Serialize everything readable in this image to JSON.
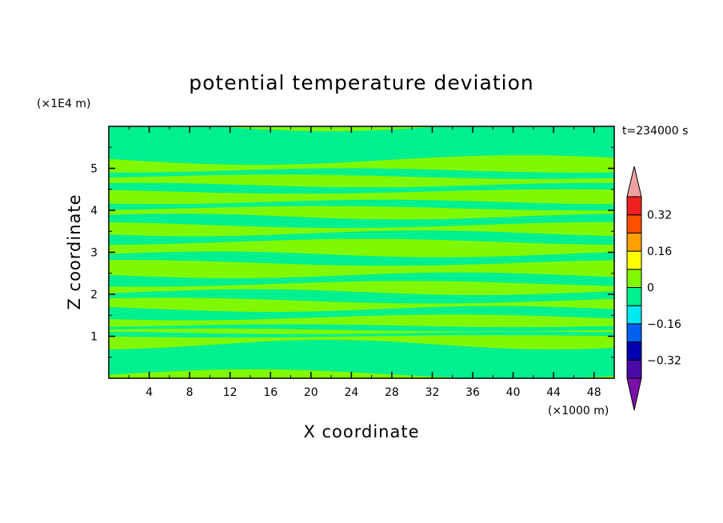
{
  "chart_data": {
    "type": "heatmap",
    "title": "potential temperature deviation",
    "xlabel": "X coordinate",
    "ylabel": "Z coordinate",
    "x_unit": "(×1000 m)",
    "y_unit": "(×1E4 m)",
    "time_label": "t=234000 s",
    "xlim": [
      0,
      50
    ],
    "ylim": [
      0,
      6
    ],
    "x_ticks": [
      4,
      8,
      12,
      16,
      20,
      24,
      28,
      32,
      36,
      40,
      44,
      48
    ],
    "y_ticks": [
      1,
      2,
      3,
      4,
      5
    ],
    "field_levels": {
      "description_values": [
        -0.08,
        0.04
      ],
      "colors": [
        "#00f090",
        "#80f800"
      ]
    },
    "bands_y": [
      {
        "y0": 0.0,
        "y1": 0.1,
        "value": 0.04
      },
      {
        "y0": 0.1,
        "y1": 0.8,
        "value": -0.08
      },
      {
        "y0": 0.8,
        "y1": 1.0,
        "value": 0.04
      },
      {
        "y0": 1.0,
        "y1": 1.08,
        "value": -0.08
      },
      {
        "y0": 1.08,
        "y1": 1.15,
        "value": 0.04
      },
      {
        "y0": 1.15,
        "y1": 1.25,
        "value": -0.08
      },
      {
        "y0": 1.25,
        "y1": 1.45,
        "value": 0.04
      },
      {
        "y0": 1.45,
        "y1": 1.65,
        "value": -0.08
      },
      {
        "y0": 1.65,
        "y1": 1.85,
        "value": 0.04
      },
      {
        "y0": 1.85,
        "y1": 2.05,
        "value": -0.08
      },
      {
        "y0": 2.05,
        "y1": 2.25,
        "value": 0.04
      },
      {
        "y0": 2.25,
        "y1": 2.45,
        "value": -0.08
      },
      {
        "y0": 2.45,
        "y1": 2.75,
        "value": 0.04
      },
      {
        "y0": 2.75,
        "y1": 2.95,
        "value": -0.08
      },
      {
        "y0": 2.95,
        "y1": 3.25,
        "value": 0.04
      },
      {
        "y0": 3.25,
        "y1": 3.45,
        "value": -0.08
      },
      {
        "y0": 3.45,
        "y1": 3.65,
        "value": 0.04
      },
      {
        "y0": 3.65,
        "y1": 3.85,
        "value": -0.08
      },
      {
        "y0": 3.85,
        "y1": 4.05,
        "value": 0.04
      },
      {
        "y0": 4.05,
        "y1": 4.2,
        "value": -0.08
      },
      {
        "y0": 4.2,
        "y1": 4.45,
        "value": 0.04
      },
      {
        "y0": 4.45,
        "y1": 4.6,
        "value": -0.08
      },
      {
        "y0": 4.6,
        "y1": 4.8,
        "value": 0.04
      },
      {
        "y0": 4.8,
        "y1": 4.95,
        "value": -0.08
      },
      {
        "y0": 4.95,
        "y1": 5.2,
        "value": 0.04
      },
      {
        "y0": 5.2,
        "y1": 6.0,
        "value": -0.08
      }
    ],
    "colorbar": {
      "labels": [
        "0.32",
        "0.16",
        "0",
        "−0.16",
        "−0.32"
      ],
      "label_values": [
        0.32,
        0.16,
        0,
        -0.16,
        -0.32
      ],
      "levels": [
        -0.4,
        -0.32,
        -0.24,
        -0.16,
        -0.08,
        0,
        0.08,
        0.16,
        0.24,
        0.32,
        0.4
      ],
      "colors": [
        "#4a0aa8",
        "#0000b0",
        "#0060f0",
        "#00e8f0",
        "#00f090",
        "#80f800",
        "#ffff00",
        "#ffa000",
        "#ff5000",
        "#f02020"
      ],
      "under_color": "#7a10a8",
      "over_color": "#f0a0a0"
    }
  }
}
